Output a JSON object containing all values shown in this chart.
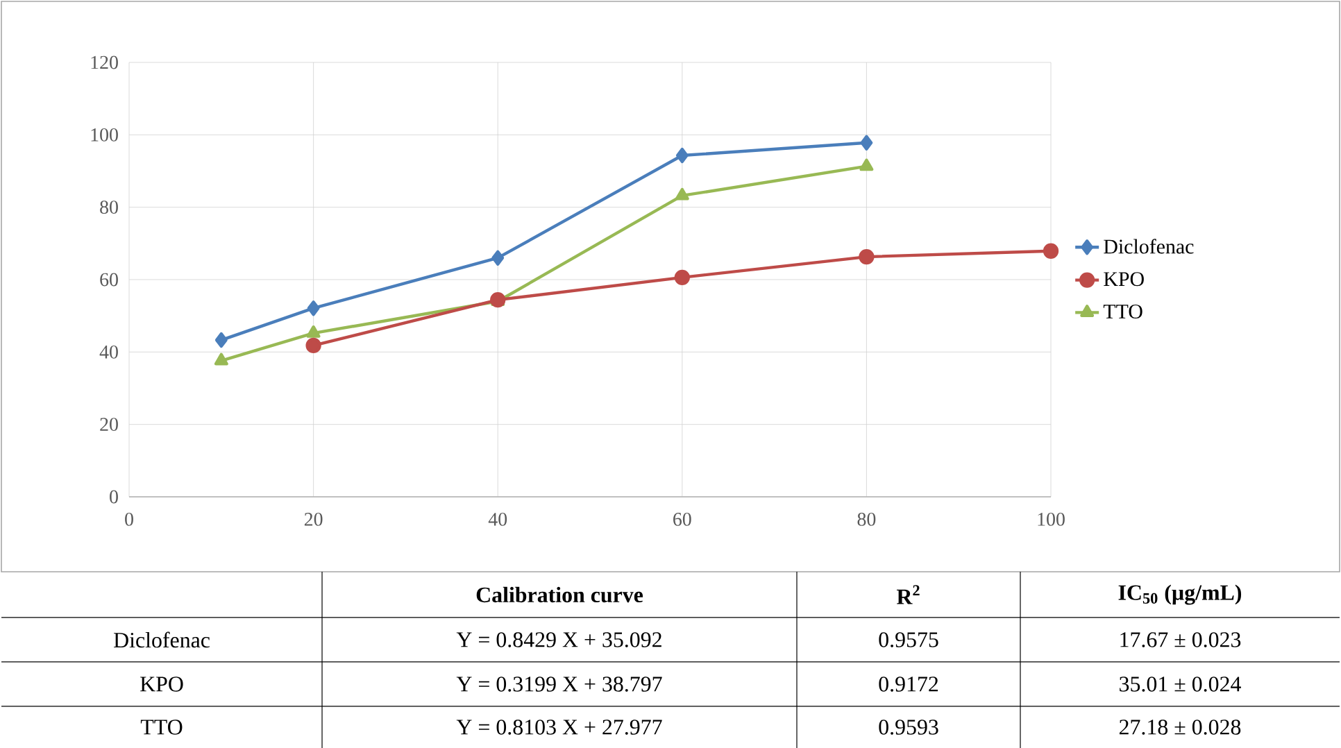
{
  "chart_data": {
    "type": "line",
    "x": [
      10,
      20,
      40,
      60,
      80,
      100
    ],
    "series": [
      {
        "name": "Diclofenac",
        "color": "#4a7ebb",
        "marker": "diamond",
        "values": [
          43.3,
          52.1,
          66,
          94.3,
          97.8,
          null
        ]
      },
      {
        "name": "KPO",
        "color": "#be4b48",
        "marker": "circle",
        "values": [
          null,
          41.8,
          54.4,
          60.6,
          66.3,
          67.9
        ]
      },
      {
        "name": "TTO",
        "color": "#98b954",
        "marker": "triangle",
        "values": [
          37.6,
          45.2,
          54,
          83.2,
          91.3,
          null
        ]
      }
    ],
    "xlim": [
      0,
      100
    ],
    "xticks": [
      0,
      20,
      40,
      60,
      80,
      100
    ],
    "ylim": [
      0,
      120
    ],
    "yticks": [
      0,
      20,
      40,
      60,
      80,
      100,
      120
    ],
    "grid": true,
    "legend": "right",
    "annotations": [
      "**Calibration curve**",
      "**R$^{2}$**",
      "**IC$_{50}$ (µg/mL)**",
      "Diclofenac",
      "Y = 0.8429 X + 35.092",
      "0.9575",
      "17.67 ± 0.023",
      "KPO",
      "Y = 0.3199 X + 38.797",
      "0.9172",
      "35.01 ± 0.024",
      "TTO",
      "Y = 0.8103 X + 27.977",
      "0.9593",
      "27.18 ± 0.028"
    ]
  }
}
